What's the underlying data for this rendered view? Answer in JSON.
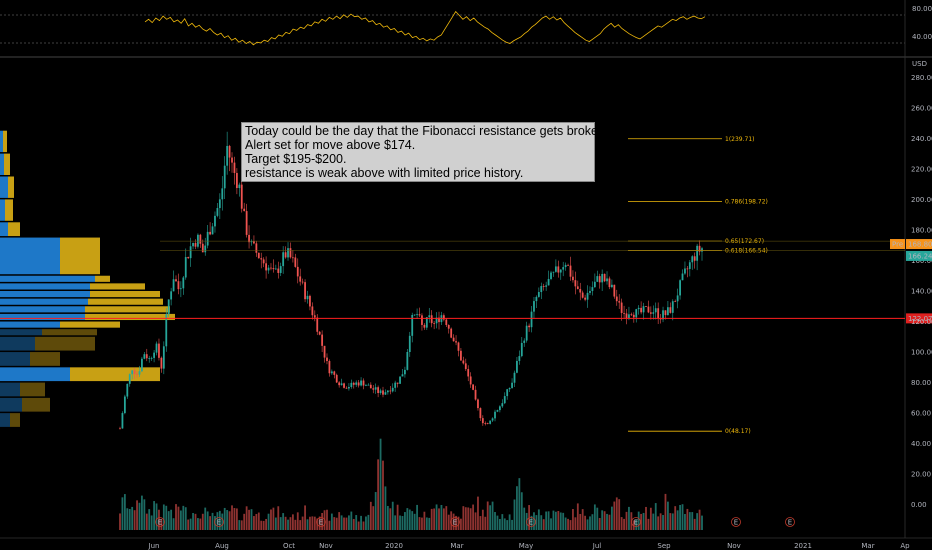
{
  "chart_data": [
    {
      "type": "line",
      "panel": "oscillator",
      "y_ticks": [
        "80.00",
        "40.00"
      ],
      "ylim": [
        20,
        95
      ],
      "levels": [
        70,
        30
      ],
      "color": "#f0b90b",
      "values": [
        66,
        70,
        65,
        72,
        68,
        75,
        70,
        73,
        66,
        69,
        64,
        71,
        60,
        64,
        58,
        61,
        55,
        52,
        56,
        50,
        46,
        49,
        42,
        45,
        38,
        41,
        35,
        38,
        33,
        36,
        31,
        35,
        34,
        38,
        36,
        42,
        40,
        46,
        44,
        50,
        48,
        55,
        53,
        58,
        56,
        62,
        60,
        66,
        64,
        70,
        67,
        73,
        70,
        75,
        71,
        77,
        73,
        78,
        74,
        75,
        70,
        72,
        66,
        68,
        62,
        64,
        58,
        60,
        54,
        56,
        50,
        52,
        46,
        49,
        42,
        44,
        39,
        41,
        37,
        40,
        38,
        43,
        46,
        55,
        64,
        73,
        82,
        76,
        70,
        74,
        68,
        72,
        66,
        62,
        58,
        55,
        50,
        46,
        42,
        38,
        35,
        33,
        37,
        40,
        43,
        48,
        52,
        58,
        62,
        67,
        72,
        75,
        70,
        74,
        69,
        72,
        65,
        60,
        55,
        50,
        46,
        42,
        38,
        36,
        40,
        44,
        48,
        55,
        60,
        64,
        58,
        62,
        56,
        52,
        48,
        45,
        42,
        40,
        44,
        48,
        52,
        56,
        60,
        58,
        62,
        66,
        70,
        68,
        72,
        74,
        70,
        73,
        75,
        72,
        71,
        74
      ]
    },
    {
      "type": "candlestick",
      "panel": "price",
      "ylim": [
        -10,
        290
      ],
      "currency": "USD",
      "x_tick_labels": [
        "Jun",
        "Aug",
        "Oct",
        "Nov",
        "2020",
        "Mar",
        "May",
        "Jul",
        "Sep",
        "Nov",
        "2021",
        "Mar",
        "Ap"
      ],
      "y_tick_labels": [
        "280.00",
        "260.00",
        "240.00",
        "220.00",
        "200.00",
        "180.00",
        "160.00",
        "140.00",
        "120.00",
        "100.00",
        "80.00",
        "60.00",
        "40.00",
        "20.00",
        "0.00"
      ],
      "close_path": [
        50,
        75,
        90,
        85,
        100,
        95,
        105,
        90,
        130,
        150,
        140,
        160,
        170,
        175,
        165,
        180,
        190,
        200,
        235,
        220,
        210,
        185,
        170,
        165,
        160,
        155,
        150,
        158,
        165,
        160,
        150,
        140,
        130,
        120,
        105,
        90,
        85,
        80,
        78,
        78,
        80,
        80,
        77,
        75,
        73,
        75,
        78,
        82,
        90,
        120,
        125,
        115,
        122,
        118,
        125,
        120,
        110,
        100,
        90,
        80,
        65,
        55,
        52,
        60,
        65,
        72,
        80,
        95,
        110,
        120,
        135,
        140,
        145,
        150,
        155,
        160,
        150,
        140,
        135,
        140,
        145,
        150,
        145,
        140,
        130,
        125,
        128,
        125,
        126,
        128,
        127,
        124,
        125,
        130,
        140,
        150,
        158,
        165,
        168
      ],
      "volume_path": [
        8,
        12,
        6,
        15,
        9,
        7,
        11,
        6,
        9,
        5,
        10,
        7,
        6,
        8,
        5,
        9,
        4,
        7,
        6,
        8,
        5,
        7,
        9,
        6,
        5,
        8,
        6,
        7,
        4,
        6,
        5,
        7,
        6,
        8,
        5,
        6,
        4,
        7,
        5,
        6,
        4,
        5,
        6,
        18,
        30,
        12,
        9,
        7,
        10,
        6,
        8,
        5,
        6,
        7,
        14,
        9,
        6,
        5,
        8,
        7,
        11,
        6,
        9,
        8,
        7,
        6,
        5,
        16,
        10,
        8,
        7,
        6,
        5,
        9,
        7,
        6,
        5,
        8,
        6,
        7,
        9,
        6,
        5,
        8,
        10,
        6,
        7,
        5,
        6,
        7,
        8,
        6,
        12,
        9,
        7,
        8,
        6,
        5,
        7
      ],
      "fibonacci": {
        "color": "#f0b90b",
        "levels": [
          {
            "label": "1(239.71)",
            "value": 239.71
          },
          {
            "label": "0.786(198.72)",
            "value": 198.72
          },
          {
            "label": "0.65(172.67)",
            "value": 172.67
          },
          {
            "label": "0.618(166.54)",
            "value": 166.54
          },
          {
            "label": "0(48.17)",
            "value": 48.17
          }
        ]
      },
      "horizontal_line": {
        "value": 122.07,
        "label": "122.07",
        "color": "#ff1f1f"
      },
      "price_tags": [
        {
          "value": 168.8,
          "label": "168.80",
          "prefix": "Pre",
          "color": "#f7931a"
        },
        {
          "value": 166.24,
          "label": "166.24",
          "color": "#26a69a"
        }
      ],
      "volume_profile_colors": [
        "#1e78c8",
        "#c8a014"
      ],
      "event_markers": [
        "E",
        "E",
        "E",
        "E",
        "E",
        "E",
        "E",
        "E"
      ],
      "bull_color": "#26a69a",
      "bear_color": "#ef5350"
    }
  ],
  "annotation": {
    "lines": [
      "Today could be the day that the Fibonacci resistance gets broken.",
      "Alert set for move above $174.",
      "Target $195-$200.",
      "resistance is weak above with limited price history."
    ]
  }
}
